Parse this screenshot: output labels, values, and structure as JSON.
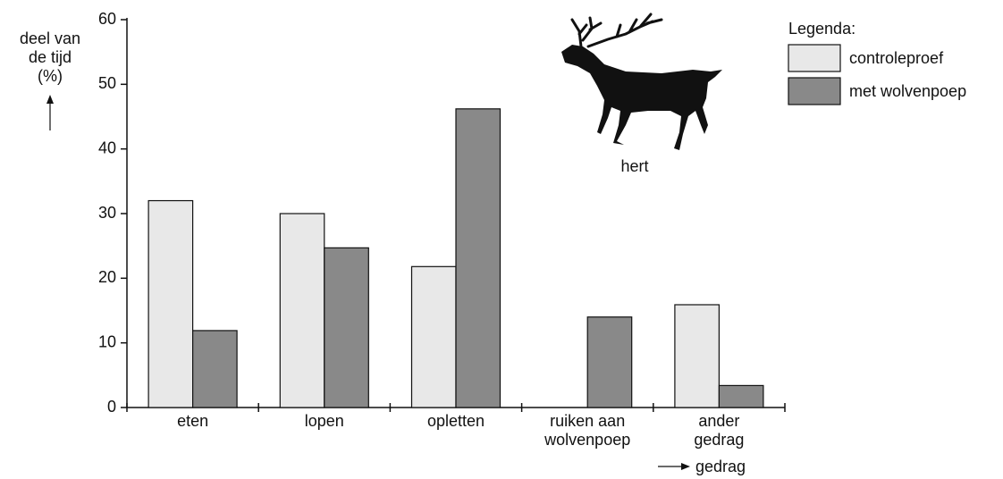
{
  "chart_data": {
    "type": "bar",
    "y_label": "deel van\nde tijd\n(%)",
    "x_label": "gedrag",
    "legend_title": "Legenda:",
    "annotation": "hert",
    "categories": [
      "eten",
      "lopen",
      "opletten",
      "ruiken aan\nwolvenpoep",
      "ander\ngedrag"
    ],
    "series": [
      {
        "name": "controleproef",
        "color": "#e8e8e8",
        "values": [
          32,
          30,
          21.8,
          0,
          15.9
        ]
      },
      {
        "name": "met wolvenpoep",
        "color": "#898989",
        "values": [
          11.9,
          24.7,
          46.2,
          14,
          3.4
        ]
      }
    ],
    "ylim": [
      0,
      60
    ],
    "yticks": [
      0,
      10,
      20,
      30,
      40,
      50,
      60
    ]
  }
}
